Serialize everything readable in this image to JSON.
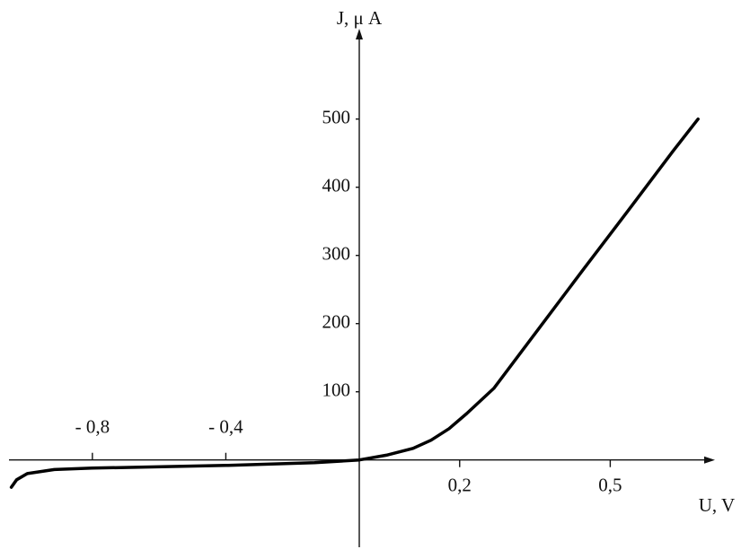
{
  "chart_data": {
    "type": "line",
    "x_label": "U, V",
    "y_label": "J, μ A",
    "xlim": [
      -1.05,
      0.68
    ],
    "ylim": [
      -128,
      622
    ],
    "xticks": [
      {
        "value": -0.8,
        "label": "- 0,8"
      },
      {
        "value": -0.4,
        "label": "- 0,4"
      },
      {
        "value": 0.2,
        "label": "0,2"
      },
      {
        "value": 0.5,
        "label": "0,5"
      }
    ],
    "yticks": [
      100,
      200,
      300,
      400,
      500
    ],
    "series": [
      {
        "color": "#000000",
        "x": [
          -1.043,
          -1.027,
          -0.995,
          -0.914,
          -0.8,
          -0.4,
          -0.134,
          0,
          0.054,
          0.107,
          0.143,
          0.179,
          0.214,
          0.268,
          0.357,
          0.446,
          0.536,
          0.625,
          0.675
        ],
        "values": [
          -40,
          -29,
          -20,
          -14,
          -12,
          -8,
          -4,
          0,
          7,
          17,
          29,
          46,
          68,
          105,
          192,
          279,
          366,
          453,
          500
        ]
      }
    ]
  }
}
